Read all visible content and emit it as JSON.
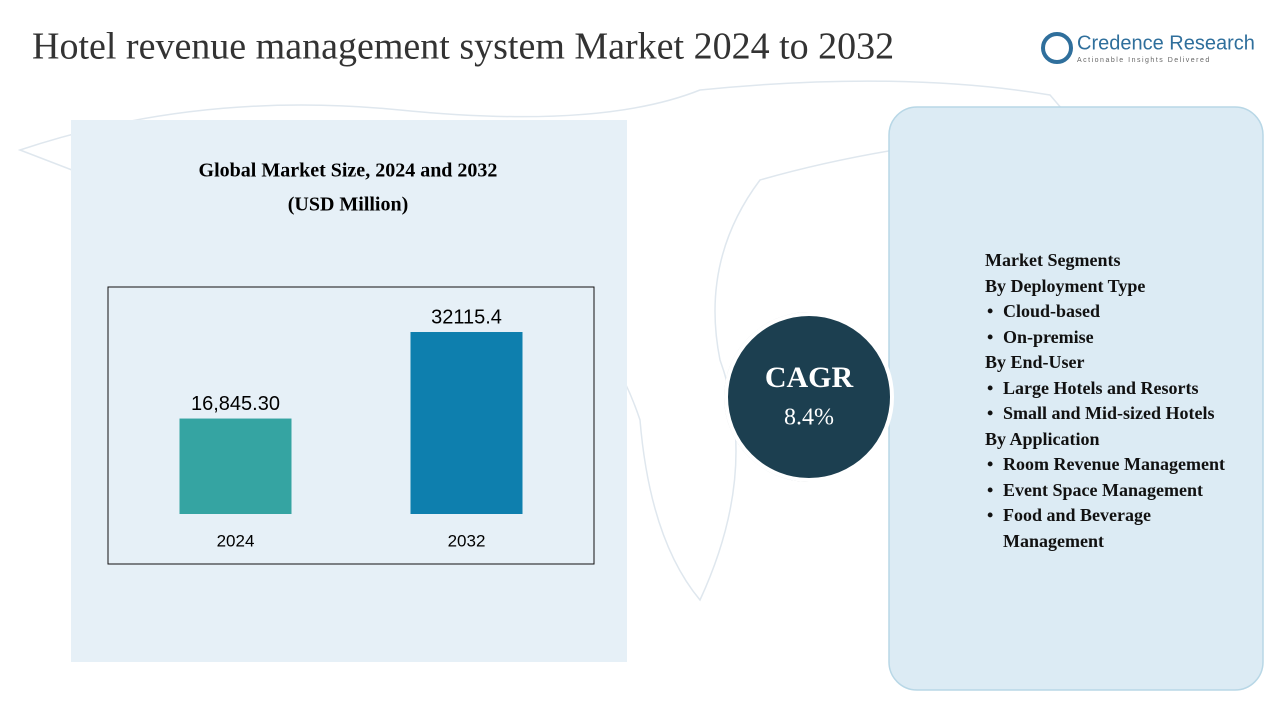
{
  "title": "Hotel revenue management system  Market 2024 to 2032",
  "brand": {
    "name": "Credence Research",
    "tagline": "Actionable Insights Delivered"
  },
  "chart_data": {
    "type": "bar",
    "title": "Global Market Size, 2024 and 2032",
    "subtitle": "(USD Million)",
    "categories": [
      "2024",
      "2032"
    ],
    "values": [
      16845.3,
      32115.4
    ],
    "value_labels": [
      "16,845.30",
      "32115.4"
    ],
    "colors": [
      "#35a4a2",
      "#0e7fae"
    ],
    "ylim": [
      0,
      36000
    ]
  },
  "cagr": {
    "label": "CAGR",
    "value": "8.4%"
  },
  "segments": {
    "heading": "Market Segments",
    "groups": [
      {
        "title": "By Deployment Type",
        "items": [
          "Cloud-based",
          "On-premise"
        ]
      },
      {
        "title": "By End-User",
        "items": [
          "Large Hotels and Resorts",
          "Small and Mid-sized Hotels"
        ]
      },
      {
        "title": "By Application",
        "items": [
          "Room Revenue Management",
          "Event Space Management",
          "Food and Beverage Management"
        ]
      }
    ]
  }
}
